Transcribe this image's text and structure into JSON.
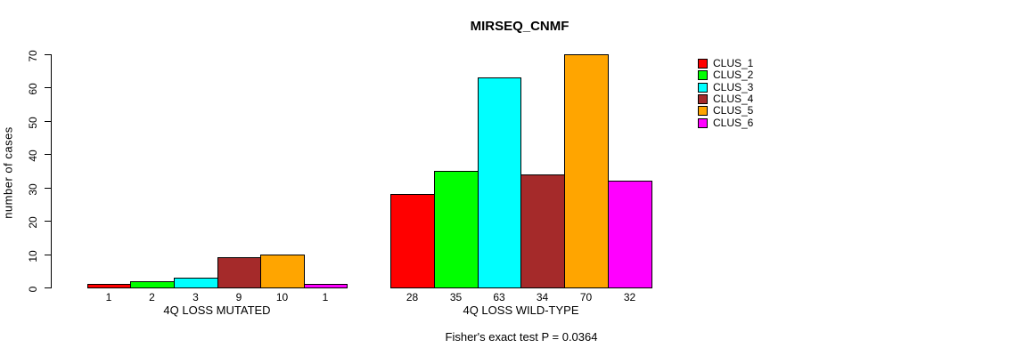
{
  "title": "MIRSEQ_CNMF",
  "footer_note": "Fisher's exact test P = 0.0364",
  "y_axis": {
    "label": "number of cases",
    "ticks": [
      "0",
      "10",
      "20",
      "30",
      "40",
      "50",
      "60",
      "70"
    ]
  },
  "legend": {
    "entries": [
      {
        "label": "CLUS_1",
        "color": "#FF0000"
      },
      {
        "label": "CLUS_2",
        "color": "#00FF00"
      },
      {
        "label": "CLUS_3",
        "color": "#00FFFF"
      },
      {
        "label": "CLUS_4",
        "color": "#A52A2A"
      },
      {
        "label": "CLUS_5",
        "color": "#FFA500"
      },
      {
        "label": "CLUS_6",
        "color": "#FF00FF"
      }
    ]
  },
  "chart_data": {
    "type": "bar",
    "title": "MIRSEQ_CNMF",
    "ylabel": "number of cases",
    "ylim": [
      0,
      70
    ],
    "yticks": [
      0,
      10,
      20,
      30,
      40,
      50,
      60,
      70
    ],
    "grid": false,
    "legend_position": "right-outside",
    "series_names": [
      "CLUS_1",
      "CLUS_2",
      "CLUS_3",
      "CLUS_4",
      "CLUS_5",
      "CLUS_6"
    ],
    "series_colors": [
      "#FF0000",
      "#00FF00",
      "#00FFFF",
      "#A52A2A",
      "#FFA500",
      "#FF00FF"
    ],
    "groups": [
      {
        "label": "4Q LOSS MUTATED",
        "categories": [
          "1",
          "2",
          "3",
          "9",
          "10",
          "1"
        ],
        "values": [
          1,
          2,
          3,
          9,
          10,
          1
        ]
      },
      {
        "label": "4Q LOSS WILD-TYPE",
        "categories": [
          "28",
          "35",
          "63",
          "34",
          "70",
          "32"
        ],
        "values": [
          28,
          35,
          63,
          34,
          70,
          32
        ]
      }
    ],
    "annotation": "Fisher's exact test P = 0.0364"
  }
}
